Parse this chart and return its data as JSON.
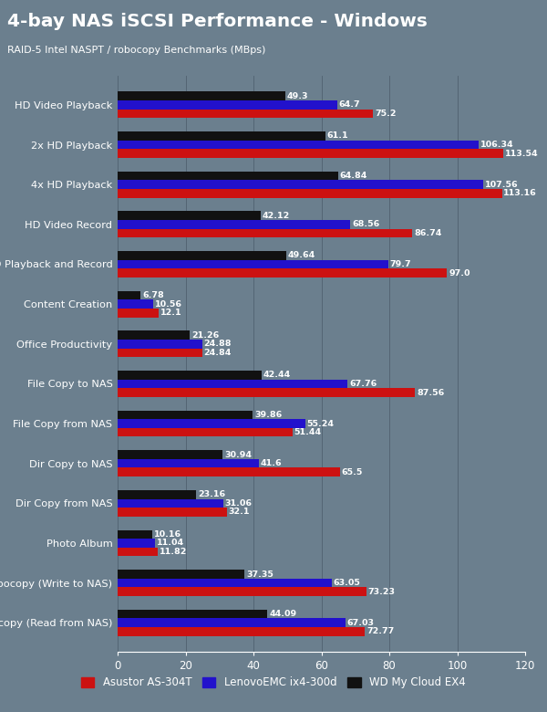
{
  "title": "4-bay NAS iSCSI Performance - Windows",
  "subtitle": "RAID-5 Intel NASPT / robocopy Benchmarks (MBps)",
  "title_bg_color": "#D4A017",
  "plot_bg_color": "#6B7F8E",
  "categories": [
    "HD Video Playback",
    "2x HD Playback",
    "4x HD Playback",
    "HD Video Record",
    "HD Playback and Record",
    "Content Creation",
    "Office Productivity",
    "File Copy to NAS",
    "File Copy from NAS",
    "Dir Copy to NAS",
    "Dir Copy from NAS",
    "Photo Album",
    "robocopy (Write to NAS)",
    "robocopy (Read from NAS)"
  ],
  "series": [
    {
      "label": "Asustor AS-304T",
      "color": "#CC1111",
      "values": [
        75.2,
        113.54,
        113.16,
        86.74,
        97.0,
        12.1,
        24.84,
        87.56,
        51.44,
        65.5,
        32.1,
        11.82,
        73.23,
        72.77
      ]
    },
    {
      "label": "LenovoEMC ix4-300d",
      "color": "#2211CC",
      "values": [
        64.7,
        106.34,
        107.56,
        68.56,
        79.7,
        10.56,
        24.88,
        67.76,
        55.24,
        41.6,
        31.06,
        11.04,
        63.05,
        67.03
      ]
    },
    {
      "label": "WD My Cloud EX4",
      "color": "#111111",
      "values": [
        49.3,
        61.1,
        64.84,
        42.12,
        49.64,
        6.78,
        21.26,
        42.44,
        39.86,
        30.94,
        23.16,
        10.16,
        37.35,
        44.09
      ]
    }
  ],
  "xlim": [
    0,
    120
  ],
  "xticks": [
    0,
    20,
    40,
    60,
    80,
    100,
    120
  ],
  "bar_height": 0.22
}
